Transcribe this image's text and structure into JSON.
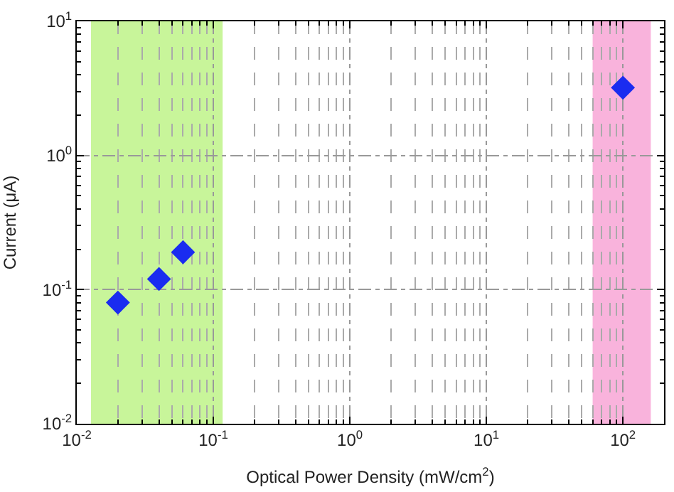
{
  "chart_data": {
    "type": "scatter",
    "xlabel": "Optical Power Density (mW/cm$^{2}$)",
    "ylabel": "Current (μA)",
    "log": "xy",
    "grid": true,
    "marker": "diamond",
    "xlim": [
      0.01,
      200
    ],
    "ylim": [
      0.01,
      10
    ],
    "xticks": [
      {
        "value": 0.01,
        "label": "10$^{-2}$"
      },
      {
        "value": 0.1,
        "label": "10$^{-1}$"
      },
      {
        "value": 1,
        "label": "10$^{0}$"
      },
      {
        "value": 10,
        "label": "10$^{1}$"
      },
      {
        "value": 100,
        "label": "10$^{2}$"
      }
    ],
    "yticks": [
      {
        "value": 0.01,
        "label": "10$^{-2}$"
      },
      {
        "value": 0.1,
        "label": "10$^{-1}$"
      },
      {
        "value": 1,
        "label": "10$^{0}$"
      },
      {
        "value": 10,
        "label": "10$^{1}$"
      }
    ],
    "x": [
      0.02,
      0.04,
      0.06,
      100
    ],
    "series": [
      {
        "color": "#1a2cf0",
        "values": [
          0.08,
          0.12,
          0.19,
          3.2
        ]
      }
    ],
    "bands": [
      {
        "axis": "x",
        "from": 0.0127,
        "to": 0.117,
        "color": "#c8f59a"
      },
      {
        "axis": "x",
        "from": 60,
        "to": 160,
        "color": "#f9b3dc"
      }
    ]
  }
}
